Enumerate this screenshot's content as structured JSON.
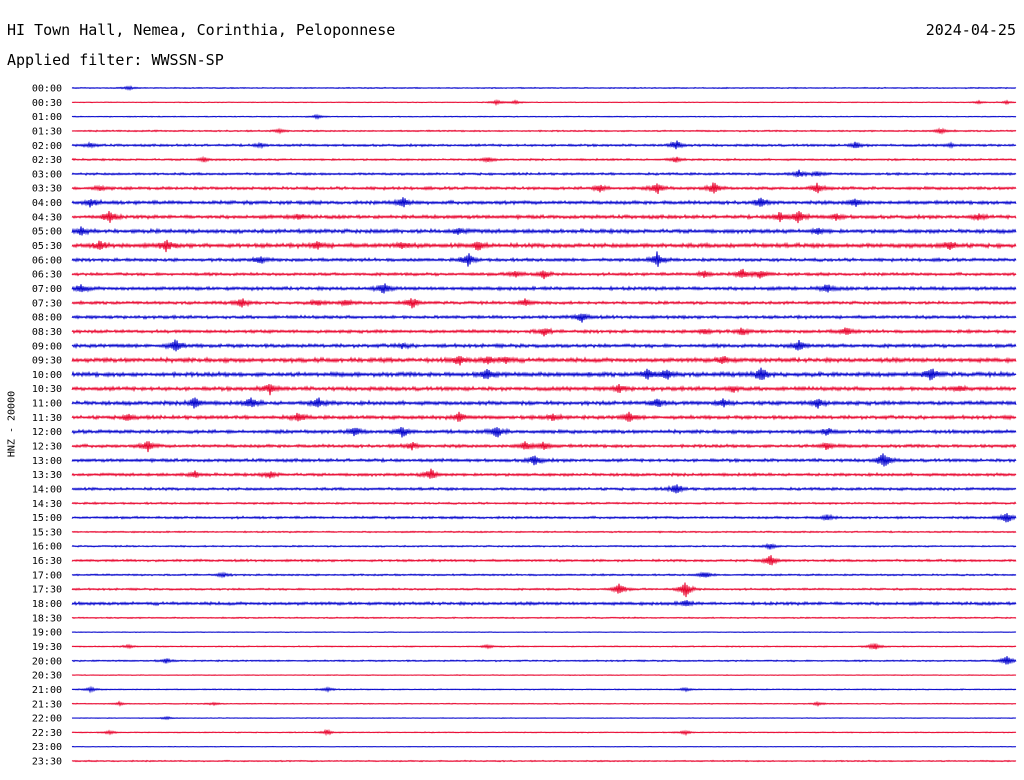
{
  "header": {
    "station": "HI Town Hall, Nemea, Corinthia, Peloponnese",
    "date": "2024-04-25",
    "filter": "Applied filter: WWSSN-SP"
  },
  "chart_data": {
    "type": "line",
    "ylabel": "HNZ - 20000",
    "row_labels": [
      "00:00",
      "00:30",
      "01:00",
      "01:30",
      "02:00",
      "02:30",
      "03:00",
      "03:30",
      "04:00",
      "04:30",
      "05:00",
      "05:30",
      "06:00",
      "06:30",
      "07:00",
      "07:30",
      "08:00",
      "08:30",
      "09:00",
      "09:30",
      "10:00",
      "10:30",
      "11:00",
      "11:30",
      "12:00",
      "12:30",
      "13:00",
      "13:30",
      "14:00",
      "14:30",
      "15:00",
      "15:30",
      "16:00",
      "16:30",
      "17:00",
      "17:30",
      "18:00",
      "18:30",
      "19:00",
      "19:30",
      "20:00",
      "20:30",
      "21:00",
      "21:30",
      "22:00",
      "22:30",
      "23:00",
      "23:30"
    ],
    "colors": [
      "#0000cc",
      "#e8002a"
    ],
    "rows": [
      {
        "label": "00:00",
        "noise": 0.6,
        "events": [
          [
            0.06,
            1.6
          ]
        ]
      },
      {
        "label": "00:30",
        "noise": 0.4,
        "events": [
          [
            0.45,
            2.2
          ],
          [
            0.47,
            1.6
          ],
          [
            0.96,
            1.5
          ],
          [
            0.99,
            1.5
          ]
        ]
      },
      {
        "label": "01:00",
        "noise": 0.5,
        "events": [
          [
            0.26,
            2.0
          ]
        ]
      },
      {
        "label": "01:30",
        "noise": 0.8,
        "events": [
          [
            0.22,
            2.0
          ],
          [
            0.92,
            2.6
          ]
        ]
      },
      {
        "label": "02:00",
        "noise": 1.2,
        "events": [
          [
            0.02,
            1.8
          ],
          [
            0.2,
            1.8
          ],
          [
            0.64,
            4.5
          ],
          [
            0.83,
            3.0
          ],
          [
            0.93,
            1.5
          ]
        ]
      },
      {
        "label": "02:30",
        "noise": 1.0,
        "events": [
          [
            0.14,
            2.0
          ],
          [
            0.44,
            2.2
          ],
          [
            0.64,
            3.0
          ]
        ]
      },
      {
        "label": "03:00",
        "noise": 1.2,
        "events": [
          [
            0.77,
            3.5
          ],
          [
            0.79,
            2.5
          ]
        ]
      },
      {
        "label": "03:30",
        "noise": 1.5,
        "events": [
          [
            0.03,
            2.0
          ],
          [
            0.56,
            4.0
          ],
          [
            0.62,
            5.5
          ],
          [
            0.68,
            6.5
          ],
          [
            0.79,
            5.0
          ]
        ]
      },
      {
        "label": "04:00",
        "noise": 1.8,
        "events": [
          [
            0.02,
            4.0
          ],
          [
            0.35,
            5.5
          ],
          [
            0.73,
            5.5
          ],
          [
            0.83,
            4.0
          ]
        ]
      },
      {
        "label": "04:30",
        "noise": 1.8,
        "events": [
          [
            0.04,
            7.0
          ],
          [
            0.24,
            3.0
          ],
          [
            0.75,
            5.0
          ],
          [
            0.77,
            6.0
          ],
          [
            0.81,
            3.0
          ],
          [
            0.96,
            3.0
          ]
        ]
      },
      {
        "label": "05:00",
        "noise": 2.0,
        "events": [
          [
            0.01,
            4.0
          ],
          [
            0.41,
            3.5
          ],
          [
            0.79,
            3.0
          ]
        ]
      },
      {
        "label": "05:30",
        "noise": 2.2,
        "events": [
          [
            0.03,
            4.0
          ],
          [
            0.1,
            6.0
          ],
          [
            0.26,
            3.5
          ],
          [
            0.35,
            3.0
          ],
          [
            0.43,
            4.5
          ],
          [
            0.93,
            4.5
          ]
        ]
      },
      {
        "label": "06:00",
        "noise": 1.6,
        "events": [
          [
            0.2,
            4.0
          ],
          [
            0.42,
            6.5
          ],
          [
            0.62,
            8.0
          ]
        ]
      },
      {
        "label": "06:30",
        "noise": 1.5,
        "events": [
          [
            0.47,
            3.5
          ],
          [
            0.5,
            4.0
          ],
          [
            0.67,
            4.0
          ],
          [
            0.71,
            5.0
          ],
          [
            0.73,
            4.0
          ]
        ]
      },
      {
        "label": "07:00",
        "noise": 1.8,
        "events": [
          [
            0.01,
            4.0
          ],
          [
            0.33,
            5.0
          ],
          [
            0.8,
            4.0
          ]
        ]
      },
      {
        "label": "07:30",
        "noise": 1.5,
        "events": [
          [
            0.18,
            5.0
          ],
          [
            0.26,
            3.0
          ],
          [
            0.29,
            3.5
          ],
          [
            0.36,
            6.0
          ],
          [
            0.48,
            4.0
          ]
        ]
      },
      {
        "label": "08:00",
        "noise": 1.6,
        "events": [
          [
            0.54,
            5.0
          ]
        ]
      },
      {
        "label": "08:30",
        "noise": 1.6,
        "events": [
          [
            0.5,
            4.5
          ],
          [
            0.67,
            3.0
          ],
          [
            0.71,
            3.5
          ],
          [
            0.82,
            4.0
          ]
        ]
      },
      {
        "label": "09:00",
        "noise": 1.8,
        "events": [
          [
            0.11,
            6.5
          ],
          [
            0.35,
            2.5
          ],
          [
            0.77,
            6.0
          ]
        ]
      },
      {
        "label": "09:30",
        "noise": 2.2,
        "events": [
          [
            0.41,
            5.0
          ],
          [
            0.44,
            4.0
          ],
          [
            0.46,
            3.5
          ],
          [
            0.69,
            4.0
          ]
        ]
      },
      {
        "label": "10:00",
        "noise": 2.2,
        "events": [
          [
            0.44,
            6.0
          ],
          [
            0.61,
            5.0
          ],
          [
            0.63,
            4.5
          ],
          [
            0.73,
            7.5
          ],
          [
            0.91,
            7.0
          ]
        ]
      },
      {
        "label": "10:30",
        "noise": 2.0,
        "events": [
          [
            0.21,
            5.5
          ],
          [
            0.58,
            4.0
          ],
          [
            0.7,
            3.0
          ],
          [
            0.94,
            3.0
          ]
        ]
      },
      {
        "label": "11:00",
        "noise": 2.0,
        "events": [
          [
            0.13,
            6.0
          ],
          [
            0.19,
            5.0
          ],
          [
            0.26,
            6.0
          ],
          [
            0.62,
            5.0
          ],
          [
            0.69,
            4.0
          ],
          [
            0.79,
            5.0
          ]
        ]
      },
      {
        "label": "11:30",
        "noise": 1.8,
        "events": [
          [
            0.06,
            3.5
          ],
          [
            0.24,
            4.5
          ],
          [
            0.41,
            5.0
          ],
          [
            0.51,
            4.0
          ],
          [
            0.59,
            5.5
          ]
        ]
      },
      {
        "label": "12:00",
        "noise": 1.8,
        "events": [
          [
            0.3,
            5.0
          ],
          [
            0.35,
            5.5
          ],
          [
            0.45,
            6.0
          ],
          [
            0.8,
            3.0
          ]
        ]
      },
      {
        "label": "12:30",
        "noise": 1.6,
        "events": [
          [
            0.08,
            6.0
          ],
          [
            0.36,
            4.0
          ],
          [
            0.48,
            5.0
          ],
          [
            0.5,
            3.5
          ],
          [
            0.8,
            4.0
          ]
        ]
      },
      {
        "label": "13:00",
        "noise": 1.6,
        "events": [
          [
            0.49,
            5.5
          ],
          [
            0.86,
            9.0
          ]
        ]
      },
      {
        "label": "13:30",
        "noise": 1.5,
        "events": [
          [
            0.13,
            3.0
          ],
          [
            0.21,
            3.5
          ],
          [
            0.38,
            6.0
          ]
        ]
      },
      {
        "label": "14:00",
        "noise": 1.4,
        "events": [
          [
            0.64,
            5.5
          ]
        ]
      },
      {
        "label": "14:30",
        "noise": 1.0,
        "events": []
      },
      {
        "label": "15:00",
        "noise": 1.2,
        "events": [
          [
            0.8,
            2.5
          ],
          [
            0.99,
            6.0
          ]
        ]
      },
      {
        "label": "15:30",
        "noise": 0.8,
        "events": []
      },
      {
        "label": "16:00",
        "noise": 0.8,
        "events": [
          [
            0.74,
            3.0
          ]
        ]
      },
      {
        "label": "16:30",
        "noise": 1.2,
        "events": [
          [
            0.74,
            6.0
          ]
        ]
      },
      {
        "label": "17:00",
        "noise": 0.9,
        "events": [
          [
            0.16,
            2.0
          ],
          [
            0.67,
            3.5
          ]
        ]
      },
      {
        "label": "17:30",
        "noise": 1.0,
        "events": [
          [
            0.58,
            6.0
          ],
          [
            0.65,
            8.5
          ]
        ]
      },
      {
        "label": "18:00",
        "noise": 1.6,
        "events": [
          [
            0.65,
            3.0
          ]
        ]
      },
      {
        "label": "18:30",
        "noise": 0.7,
        "events": []
      },
      {
        "label": "19:00",
        "noise": 0.4,
        "events": []
      },
      {
        "label": "19:30",
        "noise": 0.6,
        "events": [
          [
            0.06,
            1.5
          ],
          [
            0.44,
            1.5
          ],
          [
            0.85,
            3.5
          ]
        ]
      },
      {
        "label": "20:00",
        "noise": 0.8,
        "events": [
          [
            0.1,
            2.0
          ],
          [
            0.99,
            6.0
          ]
        ]
      },
      {
        "label": "20:30",
        "noise": 0.4,
        "events": []
      },
      {
        "label": "21:00",
        "noise": 0.6,
        "events": [
          [
            0.02,
            2.0
          ],
          [
            0.27,
            2.0
          ],
          [
            0.65,
            1.5
          ]
        ]
      },
      {
        "label": "21:30",
        "noise": 0.5,
        "events": [
          [
            0.05,
            1.5
          ],
          [
            0.15,
            1.5
          ],
          [
            0.79,
            1.5
          ]
        ]
      },
      {
        "label": "22:00",
        "noise": 0.4,
        "events": [
          [
            0.1,
            1.5
          ]
        ]
      },
      {
        "label": "22:30",
        "noise": 0.5,
        "events": [
          [
            0.04,
            2.0
          ],
          [
            0.27,
            2.5
          ],
          [
            0.65,
            2.0
          ]
        ]
      },
      {
        "label": "23:00",
        "noise": 0.3,
        "events": []
      },
      {
        "label": "23:30",
        "noise": 0.7,
        "events": []
      }
    ]
  }
}
